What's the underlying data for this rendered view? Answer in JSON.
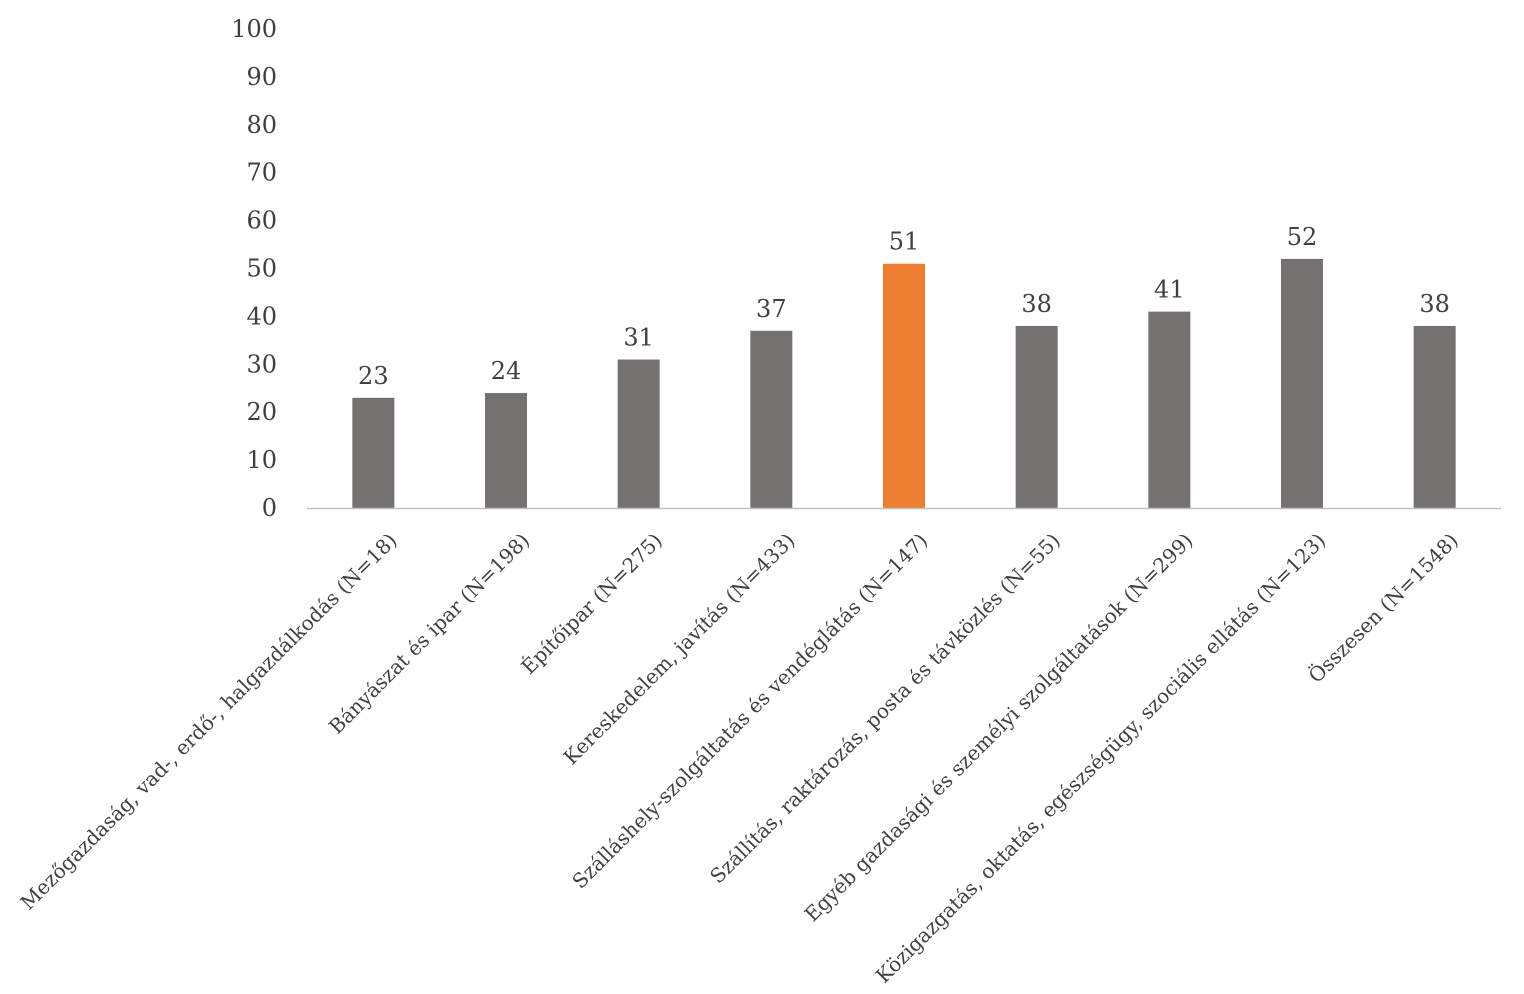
{
  "chart_data": {
    "type": "bar",
    "categories": [
      "Mezőgazdaság, vad-, erdő-, halgazdálkodás (N=18)",
      "Bányászat és ipar (N=198)",
      "Építőipar (N=275)",
      "Kereskedelem, javítás (N=433)",
      "Szálláshely-szolgáltatás és vendéglátás (N=147)",
      "Szállítás, raktározás, posta és távközlés (N=55)",
      "Egyéb gazdasági és személyi szolgáltatások (N=299)",
      "Közigazgatás, oktatás, egészségügy, szociális ellátás (N=123)",
      "Összesen (N=1548)"
    ],
    "values": [
      23,
      24,
      31,
      37,
      51,
      38,
      41,
      52,
      38
    ],
    "data_labels": [
      "23",
      "24",
      "31",
      "37",
      "51",
      "38",
      "41",
      "52",
      "38"
    ],
    "highlight_index": 4,
    "colors": {
      "bar": "#767171",
      "highlight": "#ED7D31",
      "axis": "#bfbfbf",
      "text": "#404040"
    },
    "ylim": [
      0,
      100
    ],
    "yticks": [
      "0",
      "10",
      "20",
      "30",
      "40",
      "50",
      "60",
      "70",
      "80",
      "90",
      "100"
    ],
    "grid": false,
    "legend": "none",
    "title": "",
    "xlabel": "",
    "ylabel": ""
  }
}
